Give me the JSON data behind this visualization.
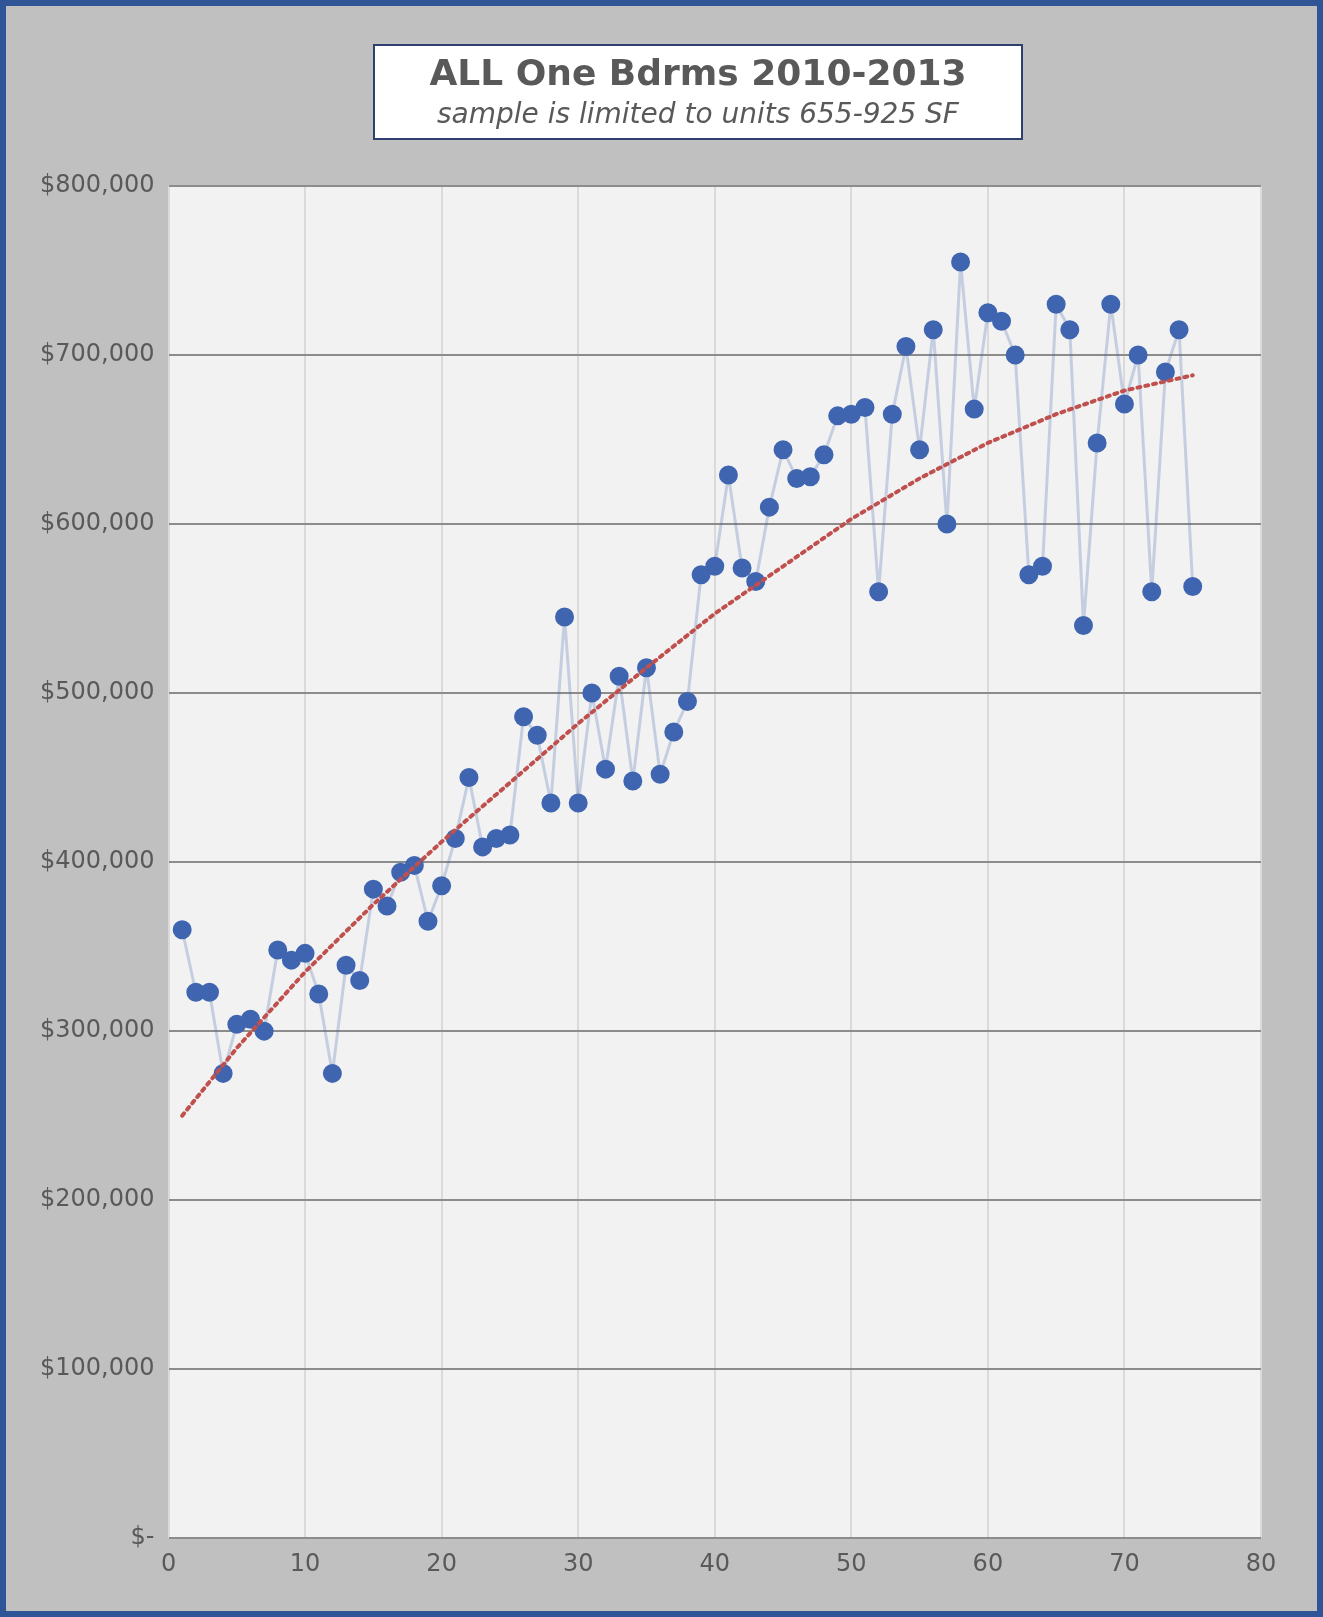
{
  "chart_data": {
    "type": "line",
    "title": "ALL One Bdrms 2010-2013",
    "subtitle": "sample is limited to units 655-925 SF",
    "xlim": [
      0,
      80
    ],
    "xticks": [
      0,
      10,
      20,
      30,
      40,
      50,
      60,
      70,
      80
    ],
    "ylim": [
      0,
      800000
    ],
    "yticks": [
      {
        "value": 0,
        "label": "$-"
      },
      {
        "value": 100000,
        "label": "$100,000"
      },
      {
        "value": 200000,
        "label": "$200,000"
      },
      {
        "value": 300000,
        "label": "$300,000"
      },
      {
        "value": 400000,
        "label": "$400,000"
      },
      {
        "value": 500000,
        "label": "$500,000"
      },
      {
        "value": 600000,
        "label": "$600,000"
      },
      {
        "value": 700000,
        "label": "$700,000"
      },
      {
        "value": 800000,
        "label": "$800,000"
      }
    ],
    "grid": true,
    "marker": "circle",
    "series": [
      {
        "color": "#4065b0",
        "x": [
          1,
          2,
          3,
          4,
          5,
          6,
          7,
          8,
          9,
          10,
          11,
          12,
          13,
          14,
          15,
          16,
          17,
          18,
          19,
          20,
          21,
          22,
          23,
          24,
          25,
          26,
          27,
          28,
          29,
          30,
          31,
          32,
          33,
          34,
          35,
          36,
          37,
          38,
          39,
          40,
          41,
          42,
          43,
          44,
          45,
          46,
          47,
          48,
          49,
          50,
          51,
          52,
          53,
          54,
          55,
          56,
          57,
          58,
          59,
          60,
          61,
          62,
          63,
          64,
          65,
          66,
          67,
          68,
          69,
          70,
          71,
          72,
          73,
          74,
          75
        ],
        "values": [
          360000,
          323000,
          323000,
          275000,
          304000,
          307000,
          300000,
          348000,
          342000,
          346000,
          322000,
          275000,
          339000,
          330000,
          384000,
          374000,
          394000,
          398000,
          365000,
          386000,
          414000,
          450000,
          409000,
          414000,
          416000,
          486000,
          475000,
          435000,
          545000,
          435000,
          500000,
          455000,
          510000,
          448000,
          515000,
          452000,
          477000,
          495000,
          570000,
          575000,
          629000,
          574000,
          566000,
          610000,
          644000,
          627000,
          628000,
          641000,
          664000,
          665000,
          669000,
          560000,
          665000,
          705000,
          644000,
          715000,
          600000,
          755000,
          668000,
          725000,
          720000,
          700000,
          570000,
          575000,
          730000,
          715000,
          540000,
          648000,
          730000,
          671000,
          700000,
          560000,
          690000,
          715000,
          563000
        ]
      },
      {
        "type": "line",
        "color": "#c0504d",
        "line_style": "dotted",
        "marker": "none",
        "x": [
          1,
          5,
          10,
          15,
          20,
          25,
          30,
          35,
          40,
          45,
          50,
          55,
          60,
          65,
          70,
          75
        ],
        "values": [
          250000,
          290000,
          335000,
          375000,
          412000,
          447000,
          482000,
          515000,
          547000,
          575000,
          603000,
          627000,
          648000,
          665000,
          679000,
          688000
        ]
      }
    ]
  }
}
